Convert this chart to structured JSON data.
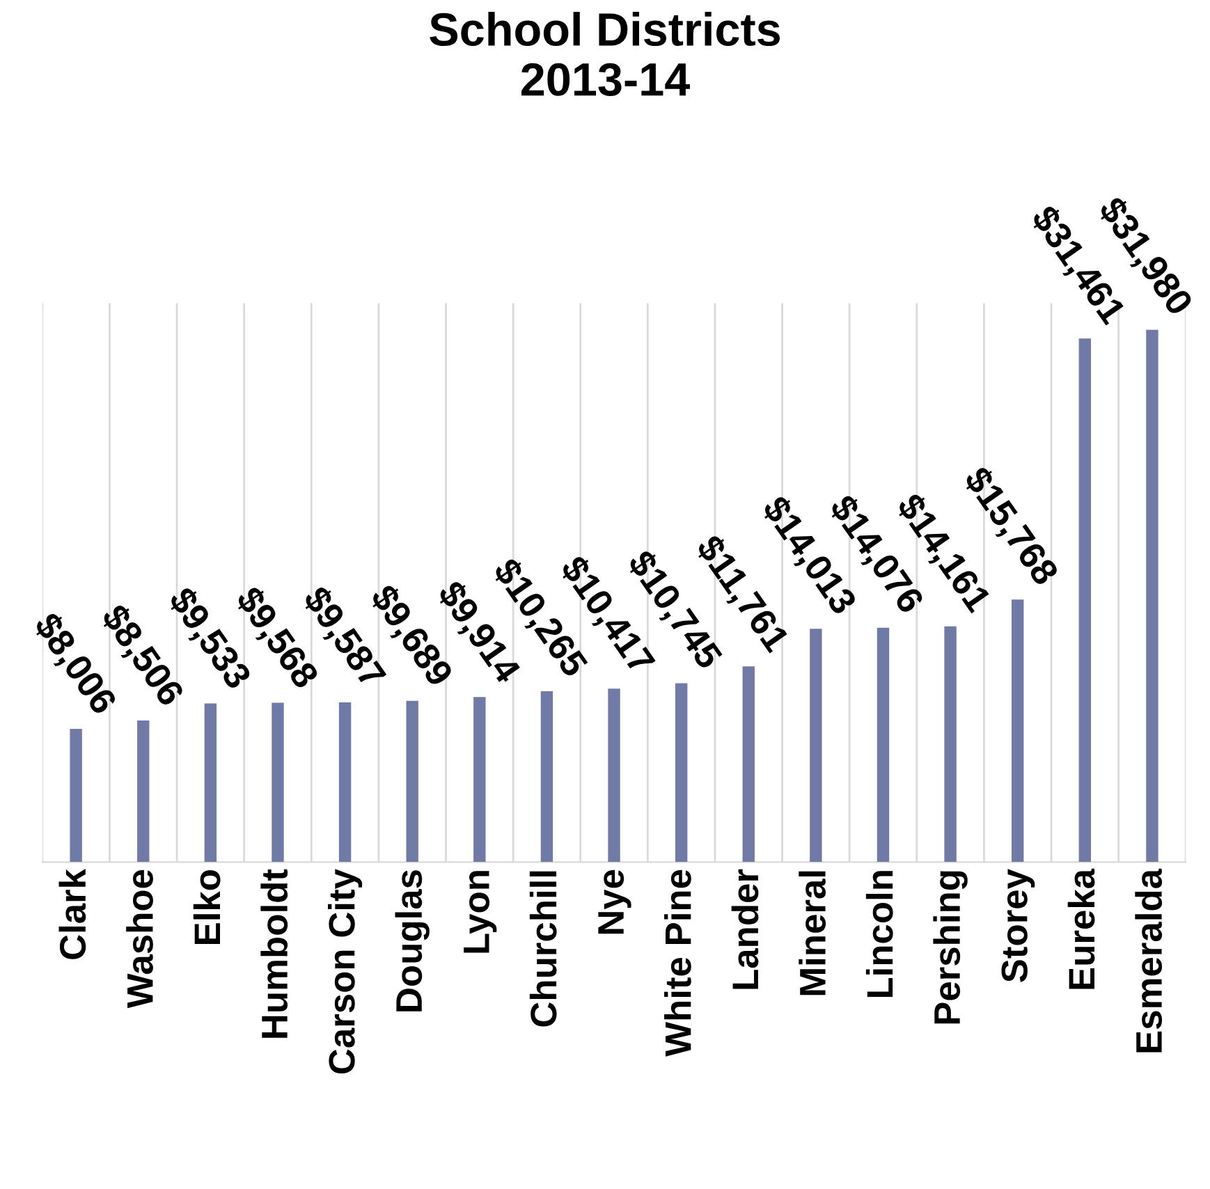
{
  "chart_data": {
    "type": "bar",
    "title": "School Districts\n2013-14",
    "categories": [
      "Clark",
      "Washoe",
      "Elko",
      "Humboldt",
      "Carson City",
      "Douglas",
      "Lyon",
      "Churchill",
      "Nye",
      "White Pine",
      "Lander",
      "Mineral",
      "Lincoln",
      "Pershing",
      "Storey",
      "Eureka",
      "Esmeralda"
    ],
    "values": [
      8006,
      8506,
      9533,
      9568,
      9587,
      9689,
      9914,
      10265,
      10417,
      10745,
      11761,
      14013,
      14076,
      14161,
      15768,
      31461,
      31980
    ],
    "value_labels": [
      "$8,006",
      "$8,506",
      "$9,533",
      "$9,568",
      "$9,587",
      "$9,689",
      "$9,914",
      "$10,265",
      "$10,417",
      "$10,745",
      "$11,761",
      "$14,013",
      "$14,076",
      "$14,161",
      "$15,768",
      "$31,461",
      "$31,980"
    ],
    "color": "#6f7aa6",
    "grid": "x",
    "tick_labels": "x"
  }
}
